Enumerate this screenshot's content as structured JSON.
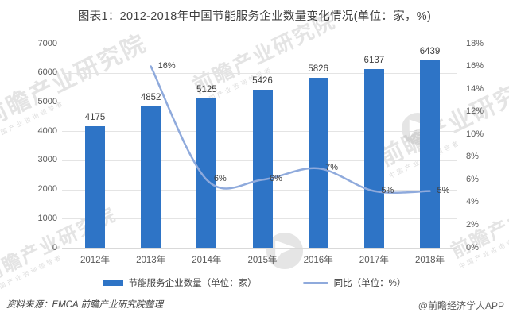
{
  "title": "图表1：2012-2018年中国节能服务企业数量变化情况(单位：家，%)",
  "chart_data": {
    "type": "bar",
    "subtype": "combo-bar-line",
    "title": "图表1：2012-2018年中国节能服务企业数量变化情况(单位：家，%)",
    "categories": [
      "2012年",
      "2013年",
      "2014年",
      "2015年",
      "2016年",
      "2017年",
      "2018年"
    ],
    "series": [
      {
        "name": "节能服务企业数量（单位：家）",
        "type": "bar",
        "axis": "left",
        "color": "#2e74c6",
        "values": [
          4175,
          4852,
          5125,
          5426,
          5826,
          6137,
          6439
        ],
        "labels": [
          "4175",
          "4852",
          "5125",
          "5426",
          "5826",
          "6137",
          "6439"
        ]
      },
      {
        "name": "同比（单位：%）",
        "type": "line",
        "axis": "right",
        "color": "#8faadc",
        "values": [
          null,
          16,
          6,
          6,
          7,
          5,
          5
        ],
        "labels": [
          "",
          "16%",
          "6%",
          "6%",
          "7%",
          "5%",
          "5%"
        ]
      }
    ],
    "left_axis": {
      "min": 0,
      "max": 7000,
      "step": 1000,
      "ticks": [
        "0",
        "1000",
        "2000",
        "3000",
        "4000",
        "5000",
        "6000",
        "7000"
      ]
    },
    "right_axis": {
      "min": 0,
      "max": 18,
      "step": 2,
      "ticks": [
        "0%",
        "2%",
        "4%",
        "6%",
        "8%",
        "10%",
        "12%",
        "14%",
        "16%",
        "18%"
      ]
    },
    "grid": true,
    "legend_position": "bottom"
  },
  "footer": {
    "source": "资料来源：EMCA 前瞻产业研究院整理",
    "credit": "@前瞻经济学人APP"
  },
  "watermarks": {
    "brand_text": "前瞻产业研究院",
    "brand_subtext": "中国产业咨询领导者",
    "logo_name": "qianzhan-fan-logo"
  },
  "colors": {
    "bar": "#2e74c6",
    "line": "#8faadc",
    "grid": "#e4e4e4",
    "axis_text": "#595959",
    "label_text": "#404040"
  }
}
